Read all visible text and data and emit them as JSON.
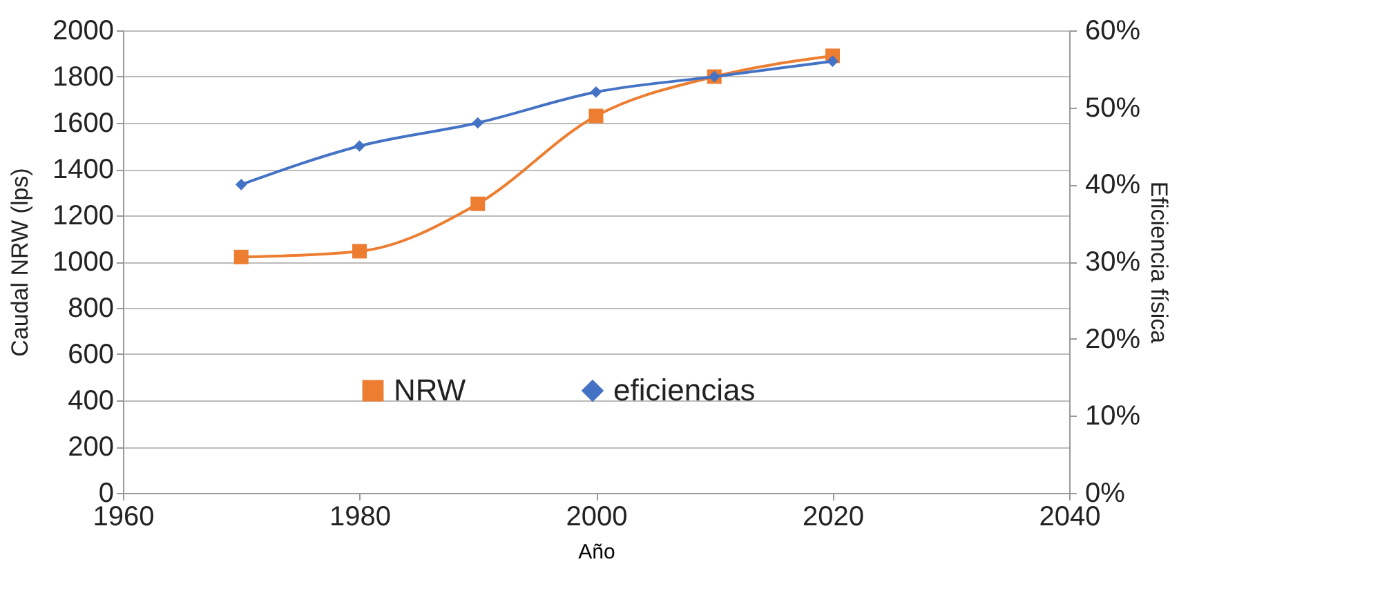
{
  "chart_data": {
    "type": "line",
    "xlabel": "Año",
    "ylabel": "Caudal NRW (lps)",
    "y2label": "Eficiencia física",
    "x": [
      1970,
      1980,
      1990,
      2000,
      2010,
      2020
    ],
    "series": [
      {
        "name": "NRW",
        "color": "#ed7d31",
        "marker": "square",
        "values": [
          1020,
          1045,
          1250,
          1630,
          1800,
          1890
        ]
      },
      {
        "name": "eficiencias",
        "color": "#4472c4",
        "marker": "diamond",
        "axis": "y2",
        "values": [
          40,
          45,
          48,
          52,
          54,
          56
        ]
      }
    ],
    "xlim": [
      1960,
      2040
    ],
    "xticks": [
      1960,
      1980,
      2000,
      2020,
      2040
    ],
    "ylim": [
      0,
      2000
    ],
    "yticks": [
      0,
      200,
      400,
      600,
      800,
      1000,
      1200,
      1400,
      1600,
      1800,
      2000
    ],
    "y2lim": [
      0,
      60
    ],
    "y2ticks": [
      {
        "value": 0,
        "label": "0%"
      },
      {
        "value": 10,
        "label": "10%"
      },
      {
        "value": 20,
        "label": "20%"
      },
      {
        "value": 30,
        "label": "30%"
      },
      {
        "value": 40,
        "label": "40%"
      },
      {
        "value": 50,
        "label": "50%"
      },
      {
        "value": 60,
        "label": "60%"
      }
    ],
    "grid": "y",
    "legend": "bottom",
    "line_style": "solid"
  }
}
